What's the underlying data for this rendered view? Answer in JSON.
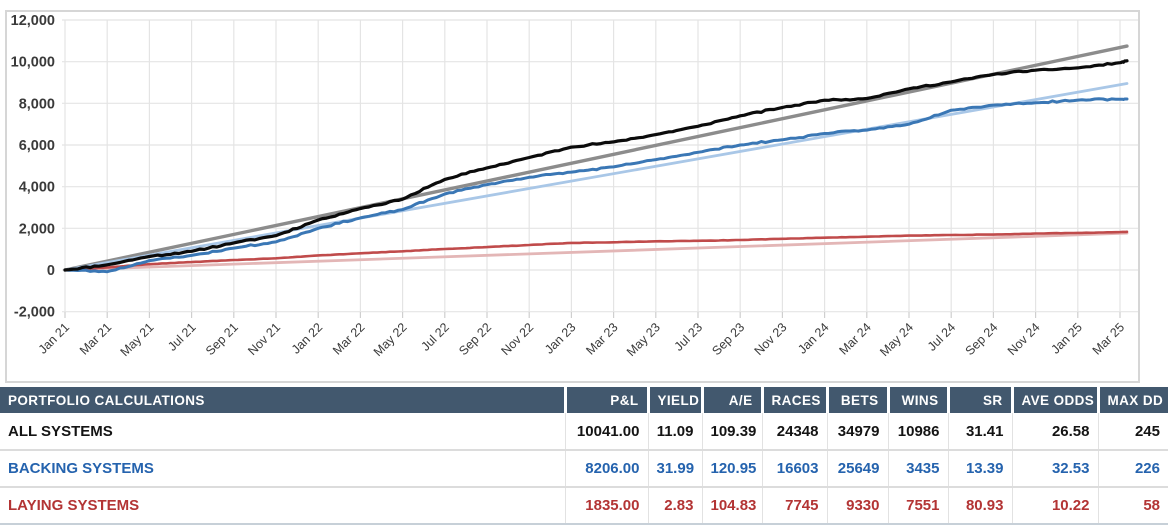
{
  "chart_data": {
    "type": "line",
    "title": "",
    "xlabel": "",
    "ylabel": "",
    "ylim": [
      -2000,
      12000
    ],
    "grid": true,
    "legend_position": "none",
    "x_labels": [
      "Jan 21",
      "Mar 21",
      "May 21",
      "Jul 21",
      "Sep 21",
      "Nov 21",
      "Jan 22",
      "Mar 22",
      "May 22",
      "Jul 22",
      "Sep 22",
      "Nov 22",
      "Jan 23",
      "Mar 23",
      "May 23",
      "Jul 23",
      "Sep 23",
      "Nov 23",
      "Jan 24",
      "Mar 24",
      "May 24",
      "Jul 24",
      "Sep 24",
      "Nov 24",
      "Jan 25",
      "Mar 25"
    ],
    "y_tick_values": [
      12000,
      10000,
      8000,
      6000,
      4000,
      2000,
      0,
      -2000
    ],
    "y_tick_labels": [
      "12,000",
      "10,000",
      "8,000",
      "6,000",
      "4,000",
      "2,000",
      "0",
      "-2,000"
    ],
    "series": [
      {
        "name": "ALL SYSTEMS",
        "color": "#0b0b0b",
        "final": 10041,
        "values": [
          0,
          250,
          650,
          900,
          1300,
          1650,
          2400,
          2950,
          3400,
          4350,
          4900,
          5400,
          5900,
          6150,
          6500,
          6900,
          7400,
          7800,
          8150,
          8230,
          8700,
          9030,
          9390,
          9590,
          9700,
          9950
        ]
      },
      {
        "name": "BACKING SYSTEMS",
        "color": "#3a77b5",
        "final": 8206,
        "values": [
          0,
          -80,
          450,
          700,
          1050,
          1350,
          2000,
          2500,
          2900,
          3650,
          4100,
          4450,
          4700,
          4950,
          5300,
          5650,
          6000,
          6250,
          6550,
          6715,
          7000,
          7670,
          7915,
          8030,
          8155,
          8200
        ]
      },
      {
        "name": "LAYING SYSTEMS",
        "color": "#c04b4b",
        "final": 1835,
        "values": [
          0,
          120,
          280,
          380,
          480,
          560,
          700,
          800,
          900,
          1010,
          1100,
          1200,
          1300,
          1330,
          1380,
          1400,
          1440,
          1500,
          1550,
          1600,
          1650,
          1680,
          1700,
          1750,
          1780,
          1820
        ]
      }
    ],
    "trend_lines": [
      {
        "name": "ALL SYSTEMS linear trend",
        "color": "#8c8c8c",
        "start": 0,
        "end": 10750
      },
      {
        "name": "BACKING SYSTEMS linear trend",
        "color": "#a9c7e7",
        "start": 0,
        "end": 8950
      },
      {
        "name": "LAYING SYSTEMS linear trend",
        "color": "#e3b6b6",
        "start": 0,
        "end": 1770
      }
    ]
  },
  "table": {
    "columns": [
      "PORTFOLIO CALCULATIONS",
      "P&L",
      "YIELD",
      "A/E",
      "RACES",
      "BETS",
      "WINS",
      "SR",
      "AVE ODDS",
      "MAX DD"
    ],
    "rows": [
      {
        "label": "ALL SYSTEMS",
        "color": "#141414",
        "values": [
          "10041.00",
          "11.09",
          "109.39",
          "24348",
          "34979",
          "10986",
          "31.41",
          "26.58",
          "245"
        ]
      },
      {
        "label": "BACKING SYSTEMS",
        "color": "#2563ae",
        "values": [
          "8206.00",
          "31.99",
          "120.95",
          "16603",
          "25649",
          "3435",
          "13.39",
          "32.53",
          "226"
        ]
      },
      {
        "label": "LAYING SYSTEMS",
        "color": "#b33434",
        "values": [
          "1835.00",
          "2.83",
          "104.83",
          "7745",
          "9330",
          "7551",
          "80.93",
          "10.22",
          "58"
        ]
      }
    ]
  },
  "colors": {
    "header_bg": "#42586e",
    "header_text": "#ffffff",
    "grid": "#e4e4e4",
    "axis_text": "#3a3a3a",
    "panel_border": "#d6d6d6"
  }
}
